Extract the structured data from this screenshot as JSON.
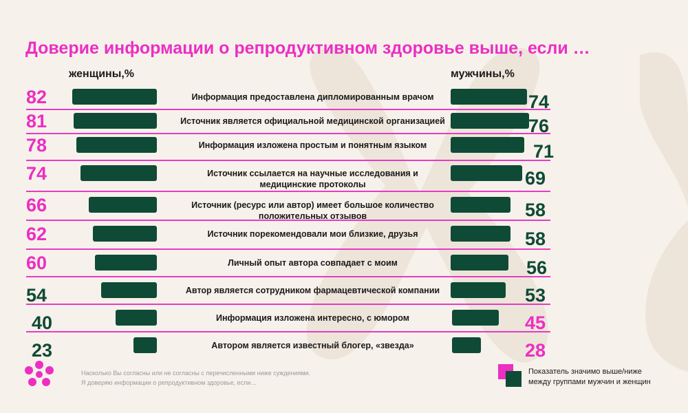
{
  "title": "Доверие информации о репродуктивном здоровье выше, если …",
  "chart_data": {
    "type": "bar",
    "series": [
      {
        "name": "женщины,%",
        "values": [
          82,
          81,
          78,
          74,
          66,
          62,
          60,
          54,
          40,
          23
        ]
      },
      {
        "name": "мужчины,%",
        "values": [
          74,
          76,
          71,
          69,
          58,
          58,
          56,
          53,
          45,
          28
        ]
      }
    ],
    "categories": [
      "Информация предоставлена дипломированным врачом",
      "Источник является официальной медицинской организацией",
      "Информация изложена простым и понятным языком",
      "Источник ссылается на научные исследования и медицинские протоколы",
      "Источник (ресурс или автор) имеет большое количество положительных отзывов",
      "Источник порекомендовали мои близкие, друзья",
      "Личный опыт автора совпадает с моим",
      "Автор является сотрудником фармацевтической компании",
      "Информация изложена интересно, с юмором",
      "Автором является известный блогер, «звезда»"
    ],
    "highlight": {
      "women": [
        true,
        true,
        true,
        true,
        true,
        true,
        true,
        false,
        false,
        false
      ],
      "men": [
        false,
        false,
        false,
        false,
        false,
        false,
        false,
        false,
        true,
        true
      ]
    },
    "colors": {
      "bar": "#0f4a36",
      "significant": "#ec2ec3",
      "normal": "#0f4a36"
    }
  },
  "footnote": {
    "line1": "Насколько Вы согласны или не согласны с перечисленными ниже суждениями.",
    "line2": "Я доверяю информации о репродуктивном здоровье, если…"
  },
  "legend": {
    "line1": "Показатель значимо выше/ниже",
    "line2": "между группами мужчин и женщин"
  },
  "icons": {
    "logo": "pink-flower-logo-icon",
    "legend": "legend-squares-icon"
  }
}
